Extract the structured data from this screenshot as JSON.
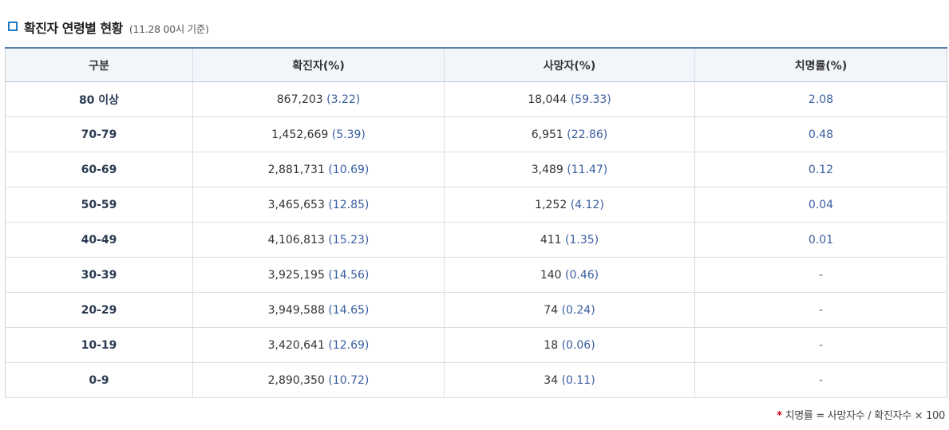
{
  "header": {
    "title": "확진자 연령별 현황",
    "subtitle": "(11.28 00시 기준)",
    "icon": "square-bullet-icon",
    "accent_color": "#1f7bbf"
  },
  "table": {
    "columns": [
      "구분",
      "확진자(%)",
      "사망자(%)",
      "치명률(%)"
    ],
    "rows": [
      {
        "age": "80 이상",
        "confirmed": "867,203",
        "confirmed_pct": "(3.22)",
        "deaths": "18,044",
        "deaths_pct": "(59.33)",
        "fatality": "2.08"
      },
      {
        "age": "70-79",
        "confirmed": "1,452,669",
        "confirmed_pct": "(5.39)",
        "deaths": "6,951",
        "deaths_pct": "(22.86)",
        "fatality": "0.48"
      },
      {
        "age": "60-69",
        "confirmed": "2,881,731",
        "confirmed_pct": "(10.69)",
        "deaths": "3,489",
        "deaths_pct": "(11.47)",
        "fatality": "0.12"
      },
      {
        "age": "50-59",
        "confirmed": "3,465,653",
        "confirmed_pct": "(12.85)",
        "deaths": "1,252",
        "deaths_pct": "(4.12)",
        "fatality": "0.04"
      },
      {
        "age": "40-49",
        "confirmed": "4,106,813",
        "confirmed_pct": "(15.23)",
        "deaths": "411",
        "deaths_pct": "(1.35)",
        "fatality": "0.01"
      },
      {
        "age": "30-39",
        "confirmed": "3,925,195",
        "confirmed_pct": "(14.56)",
        "deaths": "140",
        "deaths_pct": "(0.46)",
        "fatality": "-"
      },
      {
        "age": "20-29",
        "confirmed": "3,949,588",
        "confirmed_pct": "(14.65)",
        "deaths": "74",
        "deaths_pct": "(0.24)",
        "fatality": "-"
      },
      {
        "age": "10-19",
        "confirmed": "3,420,641",
        "confirmed_pct": "(12.69)",
        "deaths": "18",
        "deaths_pct": "(0.06)",
        "fatality": "-"
      },
      {
        "age": "0-9",
        "confirmed": "2,890,350",
        "confirmed_pct": "(10.72)",
        "deaths": "34",
        "deaths_pct": "(0.11)",
        "fatality": "-"
      }
    ]
  },
  "footnote": {
    "star": "*",
    "text": "치명률 = 사망자수 / 확진자수 × 100"
  }
}
